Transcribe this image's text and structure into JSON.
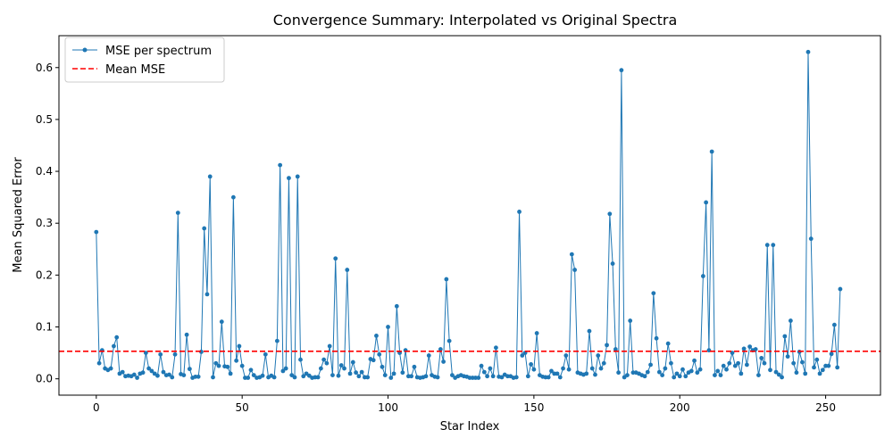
{
  "chart_data": {
    "type": "line",
    "title": "Convergence Summary: Interpolated vs Original Spectra",
    "xlabel": "Star Index",
    "ylabel": "Mean Squared Error",
    "xlim": [
      -12.8,
      268.8
    ],
    "ylim": [
      -0.0315,
      0.6615
    ],
    "xticks": [
      0,
      50,
      100,
      150,
      200,
      250
    ],
    "yticks": [
      0.0,
      0.1,
      0.2,
      0.3,
      0.4,
      0.5,
      0.6
    ],
    "xtick_labels": [
      "0",
      "50",
      "100",
      "150",
      "200",
      "250"
    ],
    "ytick_labels": [
      "0.0",
      "0.1",
      "0.2",
      "0.3",
      "0.4",
      "0.5",
      "0.6"
    ],
    "grid": false,
    "legend_position": "top-left",
    "colors": {
      "series": "#1f77b4",
      "mean": "#ff0000"
    },
    "series": [
      {
        "name": "MSE per spectrum",
        "style": "line-with-dots",
        "values": [
          0.283,
          0.03,
          0.055,
          0.02,
          0.017,
          0.02,
          0.063,
          0.08,
          0.01,
          0.013,
          0.005,
          0.006,
          0.005,
          0.008,
          0.002,
          0.01,
          0.012,
          0.05,
          0.02,
          0.015,
          0.01,
          0.006,
          0.047,
          0.013,
          0.007,
          0.008,
          0.003,
          0.047,
          0.32,
          0.009,
          0.007,
          0.085,
          0.019,
          0.002,
          0.004,
          0.004,
          0.052,
          0.29,
          0.163,
          0.39,
          0.003,
          0.03,
          0.025,
          0.11,
          0.024,
          0.023,
          0.01,
          0.35,
          0.035,
          0.063,
          0.025,
          0.002,
          0.002,
          0.017,
          0.007,
          0.002,
          0.003,
          0.006,
          0.047,
          0.003,
          0.006,
          0.003,
          0.073,
          0.412,
          0.015,
          0.02,
          0.387,
          0.007,
          0.003,
          0.39,
          0.037,
          0.005,
          0.01,
          0.006,
          0.002,
          0.003,
          0.003,
          0.02,
          0.037,
          0.03,
          0.063,
          0.007,
          0.232,
          0.006,
          0.026,
          0.02,
          0.21,
          0.01,
          0.032,
          0.012,
          0.005,
          0.013,
          0.003,
          0.003,
          0.038,
          0.036,
          0.083,
          0.047,
          0.023,
          0.007,
          0.1,
          0.002,
          0.01,
          0.14,
          0.05,
          0.012,
          0.055,
          0.005,
          0.005,
          0.023,
          0.003,
          0.002,
          0.003,
          0.005,
          0.045,
          0.007,
          0.004,
          0.003,
          0.057,
          0.033,
          0.192,
          0.073,
          0.007,
          0.002,
          0.005,
          0.007,
          0.005,
          0.004,
          0.002,
          0.002,
          0.002,
          0.002,
          0.025,
          0.013,
          0.005,
          0.02,
          0.005,
          0.06,
          0.004,
          0.003,
          0.008,
          0.005,
          0.005,
          0.002,
          0.003,
          0.322,
          0.045,
          0.05,
          0.005,
          0.028,
          0.018,
          0.088,
          0.007,
          0.004,
          0.003,
          0.003,
          0.015,
          0.01,
          0.01,
          0.003,
          0.02,
          0.045,
          0.018,
          0.24,
          0.21,
          0.012,
          0.01,
          0.008,
          0.01,
          0.092,
          0.02,
          0.008,
          0.045,
          0.02,
          0.03,
          0.065,
          0.318,
          0.222,
          0.057,
          0.012,
          0.595,
          0.003,
          0.007,
          0.112,
          0.012,
          0.012,
          0.01,
          0.007,
          0.005,
          0.013,
          0.027,
          0.165,
          0.078,
          0.013,
          0.007,
          0.02,
          0.068,
          0.03,
          0.003,
          0.01,
          0.005,
          0.018,
          0.005,
          0.012,
          0.015,
          0.035,
          0.012,
          0.018,
          0.198,
          0.34,
          0.055,
          0.438,
          0.007,
          0.015,
          0.007,
          0.025,
          0.018,
          0.03,
          0.05,
          0.025,
          0.03,
          0.01,
          0.058,
          0.027,
          0.062,
          0.055,
          0.057,
          0.007,
          0.04,
          0.03,
          0.258,
          0.017,
          0.258,
          0.013,
          0.008,
          0.003,
          0.082,
          0.043,
          0.112,
          0.03,
          0.012,
          0.052,
          0.032,
          0.01,
          0.63,
          0.27,
          0.022,
          0.037,
          0.01,
          0.017,
          0.025,
          0.025,
          0.048,
          0.104,
          0.022,
          0.173
        ]
      },
      {
        "name": "Mean MSE",
        "style": "dashed-horizontal",
        "value": 0.053
      }
    ]
  }
}
